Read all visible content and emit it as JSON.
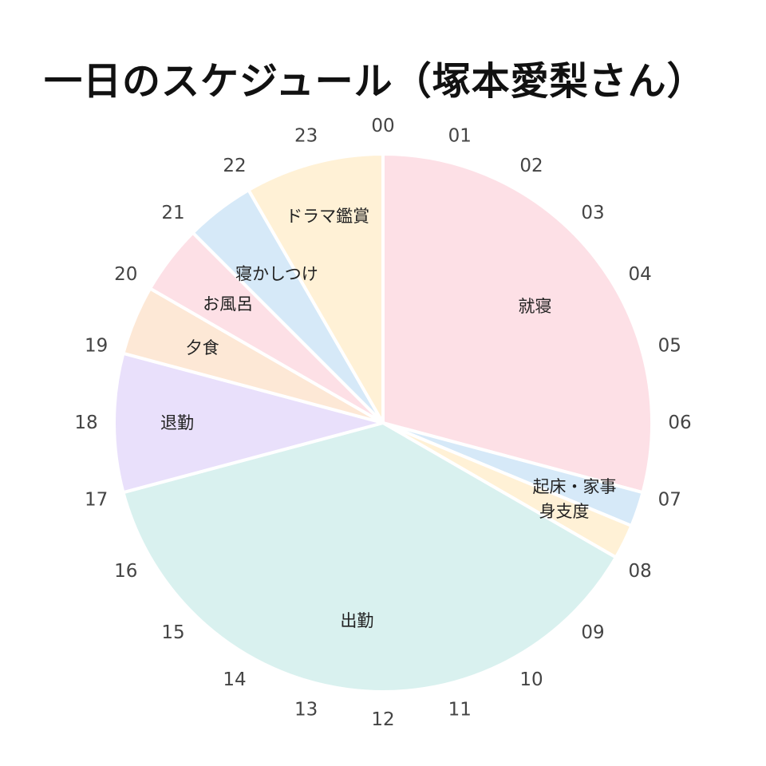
{
  "chart_data": {
    "type": "pie",
    "title": "一日のスケジュール（塚本愛梨さん）",
    "unit": "hours",
    "start": "00",
    "direction": "clockwise",
    "hour_labels": [
      "00",
      "01",
      "02",
      "03",
      "04",
      "05",
      "06",
      "07",
      "08",
      "09",
      "10",
      "11",
      "12",
      "13",
      "14",
      "15",
      "16",
      "17",
      "18",
      "19",
      "20",
      "21",
      "22",
      "23"
    ],
    "series": [
      {
        "label": "就寝",
        "start": 0,
        "end": 7,
        "hours": 7,
        "color": "#fde0e6"
      },
      {
        "label": "起床・家事",
        "start": 7,
        "end": 7.5,
        "hours": 0.5,
        "color": "#d6e9f8"
      },
      {
        "label": "身支度",
        "start": 7.5,
        "end": 8,
        "hours": 0.5,
        "color": "#fff1d6"
      },
      {
        "label": "出勤",
        "start": 8,
        "end": 17,
        "hours": 9,
        "color": "#d9f1ef"
      },
      {
        "label": "退勤",
        "start": 17,
        "end": 19,
        "hours": 2,
        "color": "#e9e0fb"
      },
      {
        "label": "夕食",
        "start": 19,
        "end": 20,
        "hours": 1,
        "color": "#fde8d6"
      },
      {
        "label": "お風呂",
        "start": 20,
        "end": 21,
        "hours": 1,
        "color": "#fde0e6"
      },
      {
        "label": "寝かしつけ",
        "start": 21,
        "end": 22,
        "hours": 1,
        "color": "#d6e9f8"
      },
      {
        "label": "ドラマ鑑賞",
        "start": 22,
        "end": 24,
        "hours": 2,
        "color": "#fff1d6"
      }
    ]
  }
}
